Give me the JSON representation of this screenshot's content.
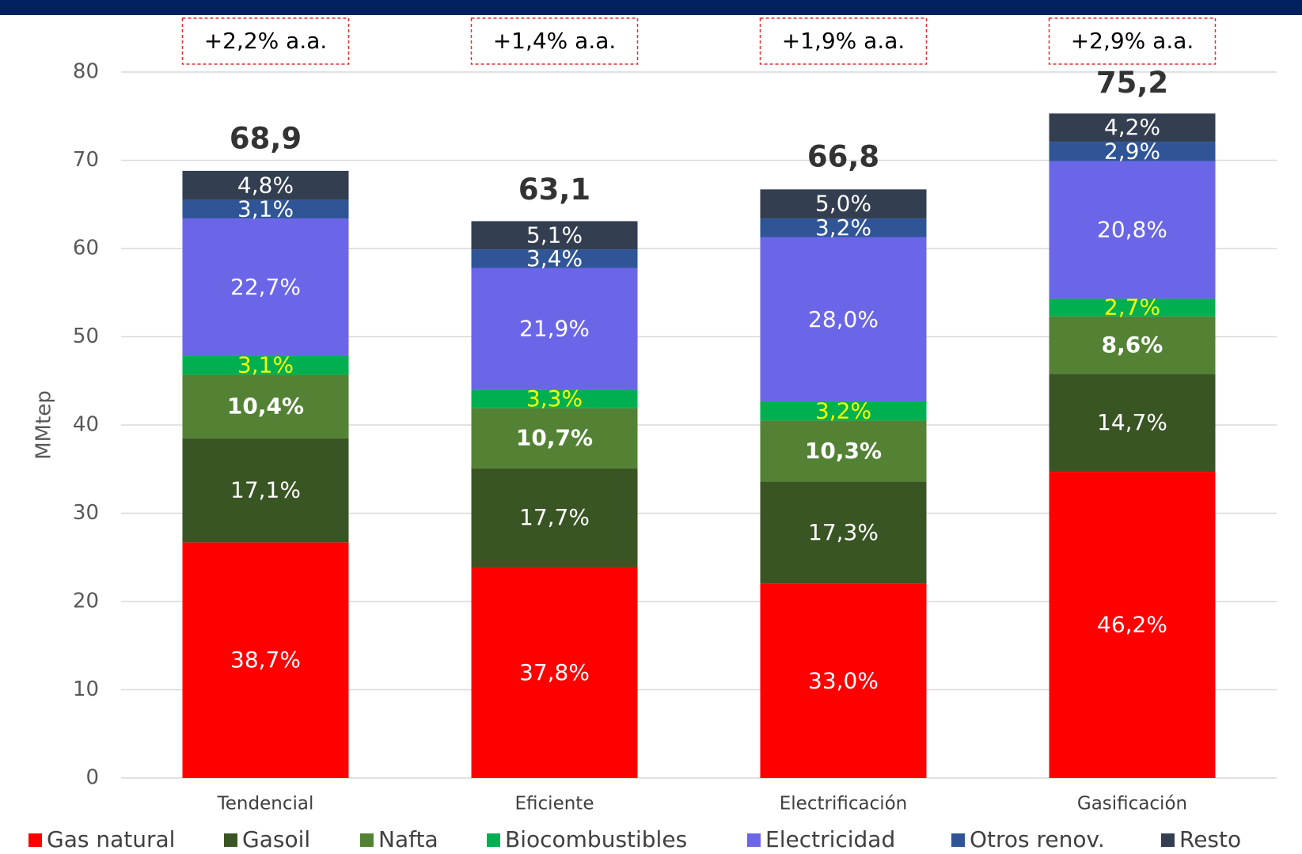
{
  "chart_data": {
    "type": "stacked_bar",
    "y_label": "MMtep",
    "categories": [
      "Tendencial",
      "Eficiente",
      "Electrificación",
      "Gasificación"
    ],
    "ylim": [
      0,
      80
    ],
    "yticks": [
      0,
      10,
      20,
      30,
      40,
      50,
      60,
      70,
      80
    ],
    "grid": true,
    "legend": "bottom",
    "totals": [
      68.9,
      63.1,
      66.8,
      75.2
    ],
    "total_labels": [
      "68,9",
      "63,1",
      "66,8",
      "75,2"
    ],
    "growth_labels": [
      "+2,2% a.a.",
      "+1,4% a.a.",
      "+1,9% a.a.",
      "+2,9% a.a."
    ],
    "series": [
      {
        "name": "Gas natural",
        "color": "#ff0000",
        "label_color": "#ffffff",
        "values": [
          26.7,
          23.9,
          22.0,
          34.7
        ],
        "share_labels": [
          "38,7%",
          "37,8%",
          "33,0%",
          "46,2%"
        ]
      },
      {
        "name": "Gasoil",
        "color": "#3a5524",
        "label_color": "#ffffff",
        "values": [
          11.8,
          11.2,
          11.6,
          11.1
        ],
        "share_labels": [
          "17,1%",
          "17,7%",
          "17,3%",
          "14,7%"
        ]
      },
      {
        "name": "Nafta",
        "color": "#548235",
        "label_color": "#ffffff",
        "bold": true,
        "values": [
          7.2,
          6.8,
          6.9,
          6.5
        ],
        "share_labels": [
          "10,4%",
          "10,7%",
          "10,3%",
          "8,6%"
        ]
      },
      {
        "name": "Biocombustibles",
        "color": "#00b050",
        "label_color": "#ffff00",
        "values": [
          2.1,
          2.1,
          2.1,
          2.0
        ],
        "share_labels": [
          "3,1%",
          "3,3%",
          "3,2%",
          "2,7%"
        ]
      },
      {
        "name": "Electricidad",
        "color": "#6b66e8",
        "label_color": "#ffffff",
        "values": [
          15.6,
          13.8,
          18.7,
          15.6
        ],
        "share_labels": [
          "22,7%",
          "21,9%",
          "28,0%",
          "20,8%"
        ]
      },
      {
        "name": "Otros renov.",
        "color": "#2f5597",
        "label_color": "#ffffff",
        "values": [
          2.1,
          2.1,
          2.1,
          2.2
        ],
        "share_labels": [
          "3,1%",
          "3,4%",
          "3,2%",
          "2,9%"
        ]
      },
      {
        "name": "Resto",
        "color": "#333f50",
        "label_color": "#ffffff",
        "values": [
          3.3,
          3.2,
          3.3,
          3.2
        ],
        "share_labels": [
          "4,8%",
          "5,1%",
          "5,0%",
          "4,2%"
        ]
      }
    ]
  }
}
